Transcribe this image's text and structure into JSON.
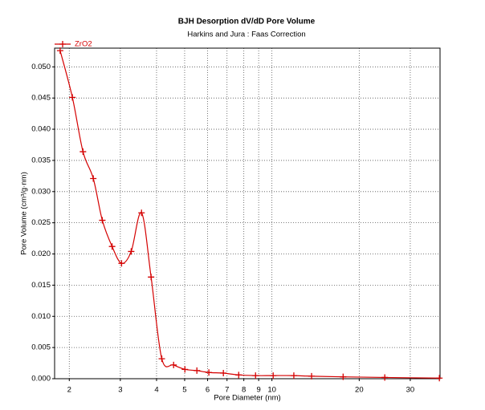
{
  "chart_data": {
    "type": "line",
    "title": "BJH Desorption dV/dD Pore Volume",
    "subtitle": "Harkins and Jura : Faas Correction",
    "x_label": "Pore Diameter (nm)",
    "y_label": "Pore Volume (cm³/g·nm)",
    "log_x": true,
    "grid": true,
    "legend": "top-left",
    "x": [
      1.86,
      2.05,
      2.23,
      2.42,
      2.6,
      2.81,
      3.03,
      3.27,
      3.55,
      3.83,
      4.17,
      4.58,
      5.01,
      5.51,
      6.06,
      6.8,
      7.68,
      8.78,
      10.1,
      11.9,
      13.7,
      17.6,
      24.5,
      37.8
    ],
    "series": [
      {
        "name": "ZrO2",
        "color": "#d40000",
        "values": [
          0.0526,
          0.0451,
          0.0364,
          0.0321,
          0.0254,
          0.0212,
          0.0185,
          0.0204,
          0.0266,
          0.0163,
          0.0032,
          0.0022,
          0.0015,
          0.0013,
          0.001,
          0.0009,
          0.0006,
          0.0005,
          0.0005,
          0.0005,
          0.0004,
          0.0003,
          0.0002,
          0.0001
        ]
      }
    ],
    "xlim": [
      1.78,
      38
    ],
    "xticks": [
      2,
      3,
      4,
      5,
      6,
      7,
      8,
      9,
      10,
      20,
      30
    ],
    "ylim": [
      0,
      0.053
    ],
    "yticks": [
      {
        "value": 0,
        "label": "0.000"
      },
      {
        "value": 0.005,
        "label": "0.005"
      },
      {
        "value": 0.01,
        "label": "0.010"
      },
      {
        "value": 0.015,
        "label": "0.015"
      },
      {
        "value": 0.02,
        "label": "0.020"
      },
      {
        "value": 0.025,
        "label": "0.025"
      },
      {
        "value": 0.03,
        "label": "0.030"
      },
      {
        "value": 0.035,
        "label": "0.035"
      },
      {
        "value": 0.04,
        "label": "0.040"
      },
      {
        "value": 0.045,
        "label": "0.045"
      },
      {
        "value": 0.05,
        "label": "0.050"
      }
    ]
  }
}
